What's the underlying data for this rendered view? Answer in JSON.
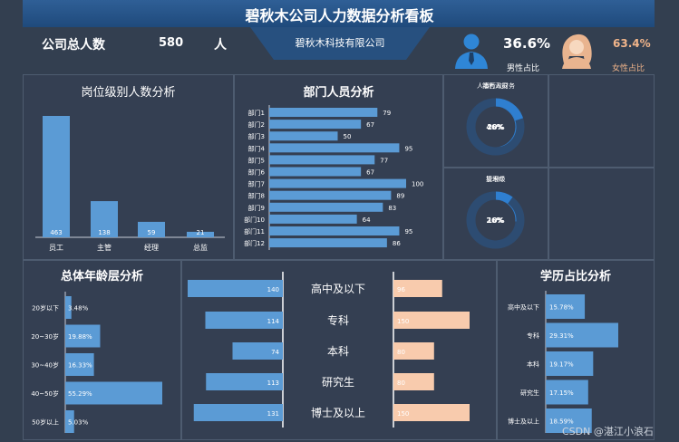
{
  "header": {
    "title": "碧秋木公司人力数据分析看板",
    "company": "碧秋木科技有限公司",
    "total_label": "公司总人数",
    "total_value": "580",
    "total_unit": "人",
    "male_pct": "36.6%",
    "male_label": "男性占比",
    "female_pct": "63.4%",
    "female_label": "女性占比",
    "colors": {
      "male": "#2f86d6",
      "female": "#f5c8a8",
      "bar": "#5b9bd5",
      "bg": "#333f50"
    }
  },
  "position_panel": {
    "title": "岗位级别人数分析",
    "chart_data": {
      "type": "bar",
      "categories": [
        "员工",
        "主管",
        "经理",
        "总监"
      ],
      "values": [
        463,
        138,
        59,
        21
      ]
    }
  },
  "dept_panel": {
    "title": "部门人员分析",
    "chart_data": {
      "type": "bar",
      "categories": [
        "部门1",
        "部门2",
        "部门3",
        "部门4",
        "部门5",
        "部门6",
        "部门7",
        "部门8",
        "部门9",
        "部门10",
        "部门11",
        "部门12"
      ],
      "values": [
        79,
        67,
        50,
        95,
        77,
        67,
        100,
        89,
        83,
        64,
        95,
        86
      ]
    }
  },
  "donuts": {
    "chart_data": {
      "type": "pie",
      "items": [
        {
          "name": "销售人员",
          "label": "46%",
          "value": 0.46
        },
        {
          "name": "人事行政财务",
          "label": "20%",
          "value": 0.2
        },
        {
          "name": "技术IT",
          "label": "26%",
          "value": 0.26
        },
        {
          "name": "管理级",
          "label": "10%",
          "value": 0.1
        }
      ]
    }
  },
  "age_panel": {
    "title": "总体年龄层分析",
    "chart_data": {
      "type": "bar",
      "categories": [
        "20岁以下",
        "20~30岁",
        "30~40岁",
        "40~50岁",
        "50岁以上"
      ],
      "values": [
        3.48,
        19.88,
        16.33,
        55.29,
        5.03
      ],
      "labels": [
        "3.48%",
        "19.88%",
        "16.33%",
        "55.29%",
        "5.03%"
      ]
    }
  },
  "edu_gender_panel": {
    "chart_data": {
      "type": "bar",
      "categories": [
        "高中及以下",
        "专科",
        "本科",
        "研究生",
        "博士及以上"
      ],
      "series": [
        {
          "name": "left",
          "values": [
            140,
            114,
            74,
            113,
            131
          ]
        },
        {
          "name": "right",
          "values": [
            96,
            150,
            80,
            80,
            150
          ]
        }
      ],
      "right_labels": [
        "96",
        "150",
        "80",
        "80",
        "150"
      ]
    }
  },
  "edu_panel": {
    "title": "学历占比分析",
    "chart_data": {
      "type": "bar",
      "categories": [
        "高中及以下",
        "专科",
        "本科",
        "研究生",
        "博士及以上"
      ],
      "values": [
        15.78,
        29.31,
        19.17,
        17.15,
        18.59
      ],
      "labels": [
        "15.78%",
        "29.31%",
        "19.17%",
        "17.15%",
        "18.59%"
      ]
    }
  },
  "watermark": "CSDN @湛江小浪石"
}
